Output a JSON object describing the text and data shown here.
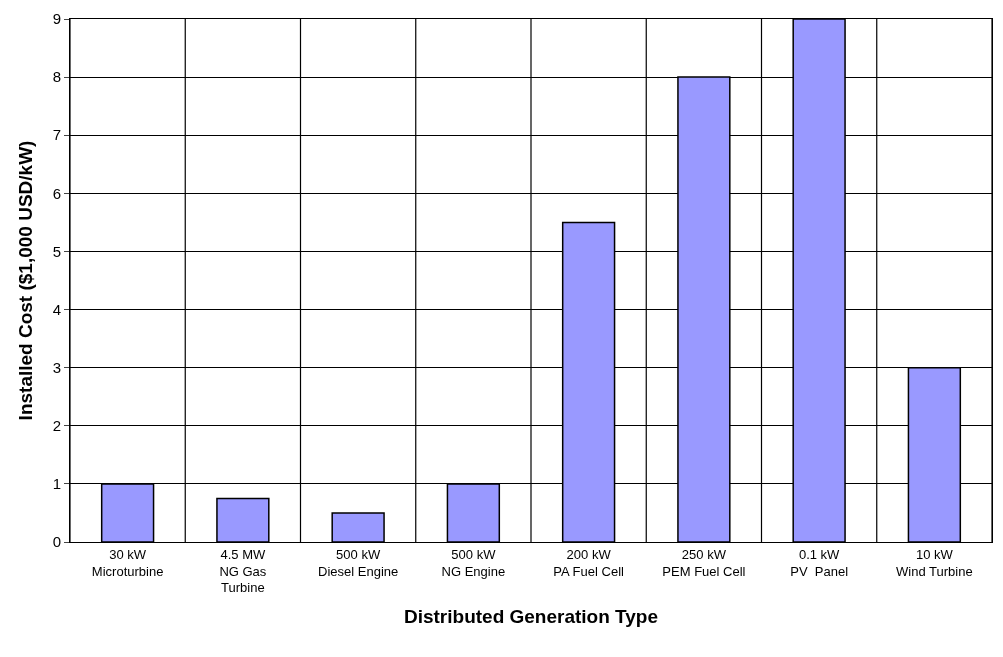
{
  "chart_data": {
    "type": "bar",
    "xlabel": "Distributed Generation Type",
    "ylabel": "Installed Cost ($1,000 USD/kW)",
    "categories": [
      "30 kW\nMicroturbine",
      "4.5 MW\nNG Gas\nTurbine",
      "500 kW\nDiesel Engine",
      "500 kW\nNG Engine",
      "200 kW\nPA Fuel Cell",
      "250 kW\nPEM Fuel Cell",
      "0.1 kW\nPV  Panel",
      "10 kW\nWind Turbine"
    ],
    "values": [
      1,
      0.75,
      0.5,
      1,
      5.5,
      8,
      9,
      3
    ],
    "color": "#9999ff",
    "ylim": [
      0,
      9
    ],
    "yticks": [
      0,
      1,
      2,
      3,
      4,
      5,
      6,
      7,
      8,
      9
    ],
    "grid": true
  }
}
